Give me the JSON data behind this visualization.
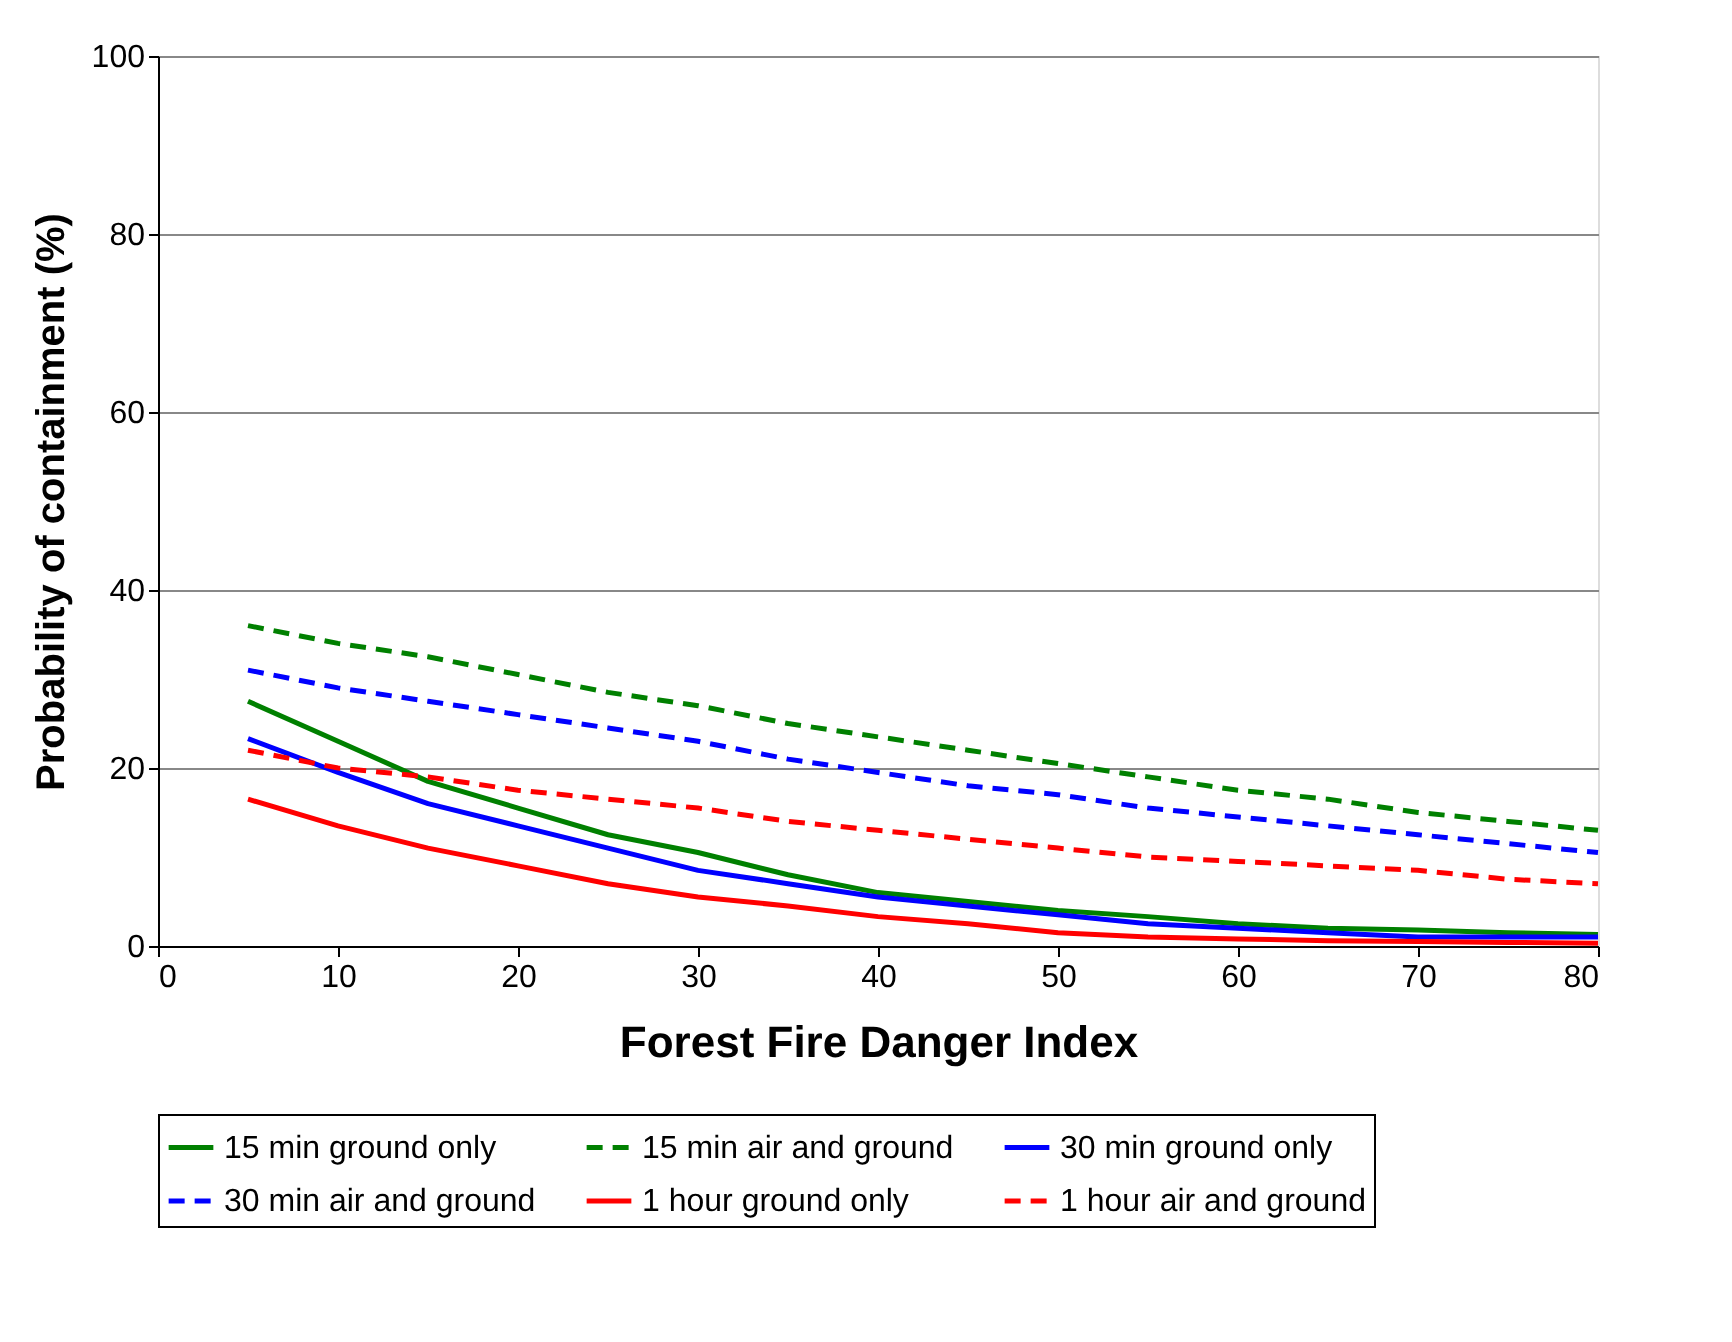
{
  "chart_data": {
    "type": "line",
    "xlabel": "Forest Fire Danger Index",
    "ylabel": "Probability of containment (%)",
    "x": [
      5,
      10,
      15,
      20,
      25,
      30,
      35,
      40,
      45,
      50,
      55,
      60,
      65,
      70,
      75,
      80
    ],
    "xlim": [
      0,
      80
    ],
    "xticks": [
      0,
      10,
      20,
      30,
      40,
      50,
      60,
      70,
      80
    ],
    "ylim": [
      0,
      100
    ],
    "yticks": [
      0,
      20,
      40,
      60,
      80,
      100
    ],
    "grid": "y",
    "legend": "bottom",
    "marker": "none",
    "series": [
      {
        "name": "15 min ground only",
        "color": "#008000",
        "line_style": "solid",
        "values": [
          27.5,
          23,
          18.5,
          15.5,
          12.5,
          10.5,
          8,
          6,
          5,
          4,
          3.3,
          2.5,
          2,
          1.8,
          1.5,
          1.3
        ]
      },
      {
        "name": "15 min air and ground",
        "color": "#008000",
        "line_style": "dashed",
        "values": [
          36,
          34,
          32.5,
          30.5,
          28.5,
          27,
          25,
          23.5,
          22,
          20.5,
          19,
          17.5,
          16.5,
          15,
          14,
          13
        ]
      },
      {
        "name": "30 min ground only",
        "color": "#0000ff",
        "line_style": "solid",
        "values": [
          23.3,
          19.5,
          16,
          13.5,
          11,
          8.5,
          7,
          5.5,
          4.5,
          3.5,
          2.5,
          2,
          1.5,
          1,
          1,
          1
        ]
      },
      {
        "name": "30 min air and ground",
        "color": "#0000ff",
        "line_style": "dashed",
        "values": [
          31,
          29,
          27.5,
          26,
          24.5,
          23,
          21,
          19.5,
          18,
          17,
          15.5,
          14.5,
          13.5,
          12.5,
          11.5,
          10.5
        ]
      },
      {
        "name": "1 hour ground only",
        "color": "#ff0000",
        "line_style": "solid",
        "values": [
          16.5,
          13.5,
          11,
          9,
          7,
          5.5,
          4.5,
          3.3,
          2.5,
          1.5,
          1,
          0.8,
          0.6,
          0.5,
          0.4,
          0.3
        ]
      },
      {
        "name": "1 hour air and ground",
        "color": "#ff0000",
        "line_style": "dashed",
        "values": [
          22,
          20,
          19,
          17.5,
          16.5,
          15.5,
          14,
          13,
          12,
          11,
          10,
          9.5,
          9,
          8.5,
          7.5,
          7
        ]
      }
    ]
  }
}
